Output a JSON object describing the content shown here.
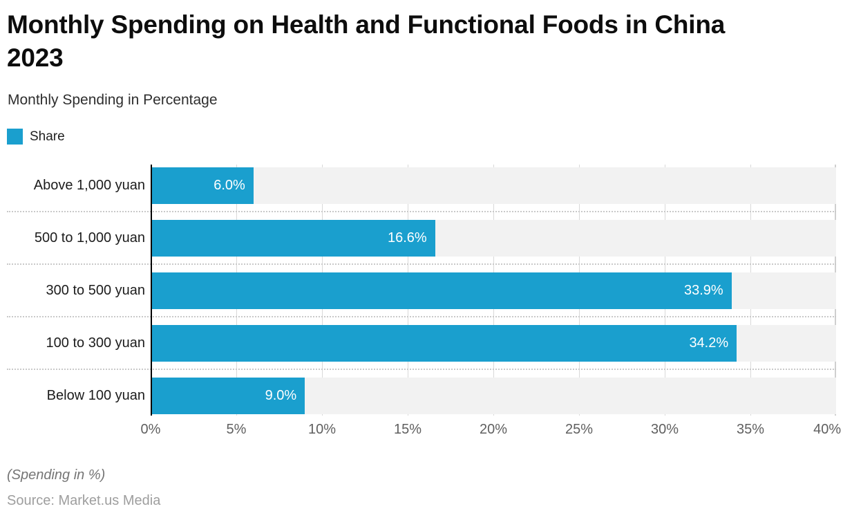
{
  "header": {
    "title_line1": "Monthly Spending on Health and Functional Foods in China",
    "title_line2": "2023",
    "subtitle": "Monthly Spending in Percentage"
  },
  "legend": {
    "label": "Share",
    "swatch_color": "#1a9fce"
  },
  "chart_data": {
    "type": "bar",
    "orientation": "horizontal",
    "title": "Monthly Spending on Health and Functional Foods in China 2023",
    "subtitle": "Monthly Spending in Percentage",
    "series_name": "Share",
    "categories": [
      "Above 1,000 yuan",
      "500 to 1,000 yuan",
      "300 to 500 yuan",
      "100 to 300 yuan",
      "Below 100 yuan"
    ],
    "values": [
      6.0,
      16.6,
      33.9,
      34.2,
      9.0
    ],
    "value_labels": [
      "6.0%",
      "16.6%",
      "33.9%",
      "34.2%",
      "9.0%"
    ],
    "xlim": [
      0,
      40
    ],
    "x_ticks": [
      "0%",
      "5%",
      "10%",
      "15%",
      "20%",
      "25%",
      "30%",
      "35%",
      "40%"
    ],
    "grid": "vertical",
    "legend_position": "top-left",
    "bar_color": "#1a9fce",
    "band_color": "#f2f2f2"
  },
  "footer": {
    "note": "(Spending in %)",
    "source": "Source: Market.us Media"
  }
}
